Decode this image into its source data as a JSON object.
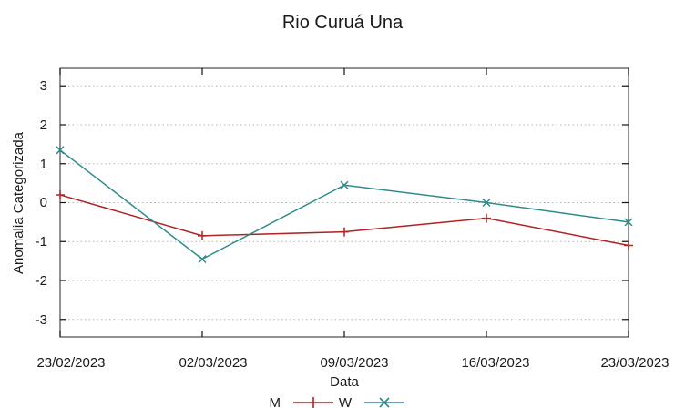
{
  "chart_data": {
    "type": "line",
    "title": "Rio Curuá Una",
    "xlabel": "Data",
    "ylabel": "Anomalia Categorizada",
    "categories": [
      "23/02/2023",
      "02/03/2023",
      "09/03/2023",
      "16/03/2023",
      "23/03/2023"
    ],
    "yticks": [
      3,
      2,
      1,
      0,
      -1,
      -2,
      -3
    ],
    "ylim": [
      -3.45,
      3.45
    ],
    "grid": "horizontal-dotted",
    "legend_position": "bottom-center",
    "series": [
      {
        "name": "M",
        "color": "#b22222",
        "marker": "plus",
        "values": [
          0.2,
          -0.85,
          -0.75,
          -0.4,
          -1.1
        ]
      },
      {
        "name": "W",
        "color": "#2e8b8b",
        "marker": "cross",
        "values": [
          1.35,
          -1.45,
          0.45,
          0.0,
          -0.5
        ]
      }
    ],
    "colors": {
      "grid": "#b3b3b3",
      "frame": "#4a4a4a",
      "tick": "#111111",
      "text": "#1a1a1a",
      "background": "#ffffff"
    }
  }
}
